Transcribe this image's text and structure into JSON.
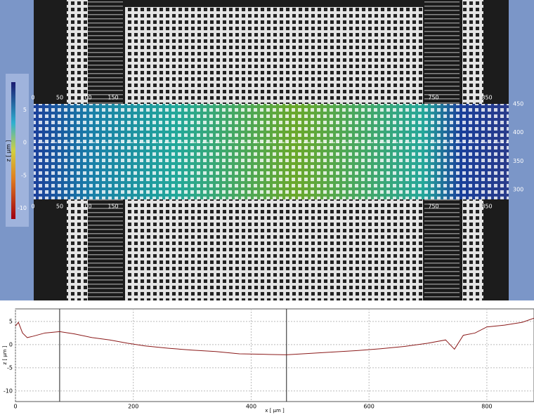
{
  "image_view": {
    "colorbar": {
      "label": "z [ µm ]",
      "ticks": [
        5,
        0,
        -5,
        -10
      ]
    },
    "x_scale": [
      0,
      50,
      100,
      150,
      750,
      850
    ],
    "y_scale": [
      450,
      400,
      350,
      300
    ]
  },
  "chart_data": {
    "type": "line",
    "xlabel": "x [ µm ]",
    "ylabel": "z [ µm ]",
    "xlim": [
      0,
      880
    ],
    "ylim": [
      -12.3,
      7.7
    ],
    "xticks": [
      0,
      200,
      400,
      600,
      800
    ],
    "yticks": [
      5,
      0,
      -5,
      -10
    ],
    "grid": true,
    "cursors": [
      75,
      460
    ],
    "series": [
      {
        "color": "#8b1a1a",
        "x": [
          0,
          5,
          12,
          20,
          30,
          50,
          75,
          100,
          130,
          160,
          190,
          220,
          260,
          300,
          340,
          380,
          420,
          460,
          500,
          540,
          580,
          620,
          660,
          700,
          730,
          745,
          760,
          780,
          800,
          830,
          860,
          880
        ],
        "values": [
          4,
          4.8,
          2.5,
          1.5,
          1.8,
          2.5,
          2.8,
          2.3,
          1.5,
          1,
          0.3,
          -0.3,
          -0.8,
          -1.2,
          -1.5,
          -2,
          -2.1,
          -2.2,
          -1.9,
          -1.6,
          -1.3,
          -0.9,
          -0.4,
          0.3,
          1,
          -1,
          2,
          2.5,
          3.8,
          4.2,
          4.8,
          5.7
        ]
      }
    ]
  }
}
